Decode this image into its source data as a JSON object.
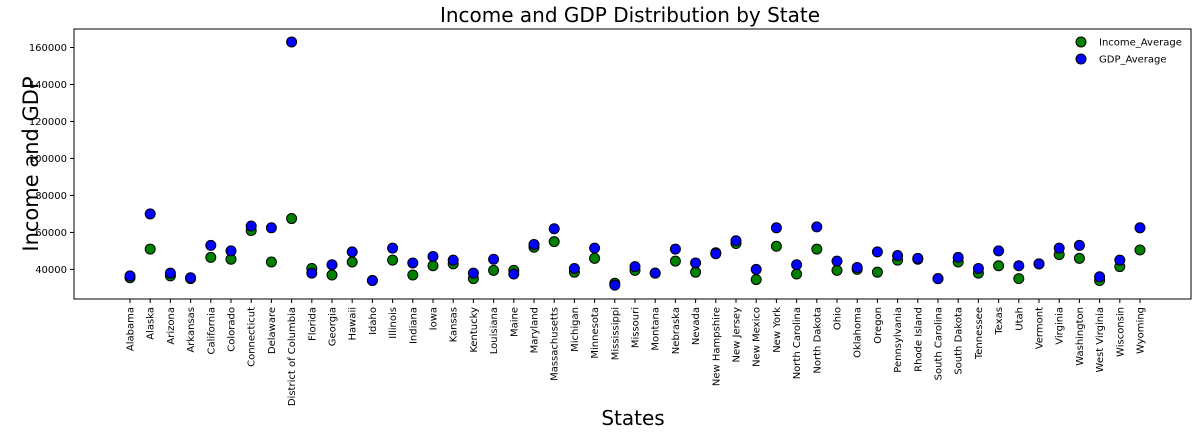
{
  "chart_data": {
    "type": "scatter",
    "title": "Income and GDP Distribution by State",
    "xlabel": "States",
    "ylabel": "Income and GDP",
    "ylim": [
      24000,
      170000
    ],
    "yticks": [
      40000,
      60000,
      80000,
      100000,
      120000,
      140000,
      160000
    ],
    "grid": false,
    "legend_position": "top-right",
    "categories": [
      "Alabama",
      "Alaska",
      "Arizona",
      "Arkansas",
      "California",
      "Colorado",
      "Connecticut",
      "Delaware",
      "District of Columbia",
      "Florida",
      "Georgia",
      "Hawaii",
      "Idaho",
      "Illinois",
      "Indiana",
      "Iowa",
      "Kansas",
      "Kentucky",
      "Louisiana",
      "Maine",
      "Maryland",
      "Massachusetts",
      "Michigan",
      "Minnesota",
      "Mississippi",
      "Missouri",
      "Montana",
      "Nebraska",
      "Nevada",
      "New Hampshire",
      "New Jersey",
      "New Mexico",
      "New York",
      "North Carolina",
      "North Dakota",
      "Ohio",
      "Oklahoma",
      "Oregon",
      "Pennsylvania",
      "Rhode Island",
      "South Carolina",
      "South Dakota",
      "Tennessee",
      "Texas",
      "Utah",
      "Vermont",
      "Virginia",
      "Washington",
      "West Virginia",
      "Wisconsin",
      "Wyoming"
    ],
    "series": [
      {
        "name": "Income_Average",
        "color": "#008000",
        "values": [
          35500,
          51000,
          36500,
          35000,
          46500,
          45500,
          61000,
          44000,
          67500,
          40500,
          37000,
          44000,
          34000,
          45000,
          37000,
          42000,
          43000,
          35000,
          39500,
          39500,
          52000,
          55000,
          38500,
          46000,
          32500,
          39500,
          38000,
          44500,
          38500,
          49000,
          54000,
          34500,
          52500,
          37500,
          51000,
          39500,
          40000,
          38500,
          45000,
          45500,
          35000,
          44000,
          38000,
          42000,
          35000,
          43000,
          48000,
          46000,
          34000,
          41500,
          50500
        ]
      },
      {
        "name": "GDP_Average",
        "color": "#0000ff",
        "values": [
          36500,
          70000,
          38000,
          35500,
          53000,
          50000,
          63500,
          62500,
          163000,
          38000,
          42500,
          49500,
          34000,
          51500,
          43500,
          47000,
          45000,
          38000,
          45500,
          37500,
          53500,
          62000,
          40500,
          51500,
          31500,
          41500,
          38000,
          51000,
          43500,
          48500,
          55500,
          40000,
          62500,
          42500,
          63000,
          44500,
          41000,
          49500,
          47500,
          46000,
          35000,
          46500,
          40500,
          50000,
          42000,
          43000,
          51500,
          53000,
          36000,
          45000,
          62500
        ]
      }
    ]
  }
}
